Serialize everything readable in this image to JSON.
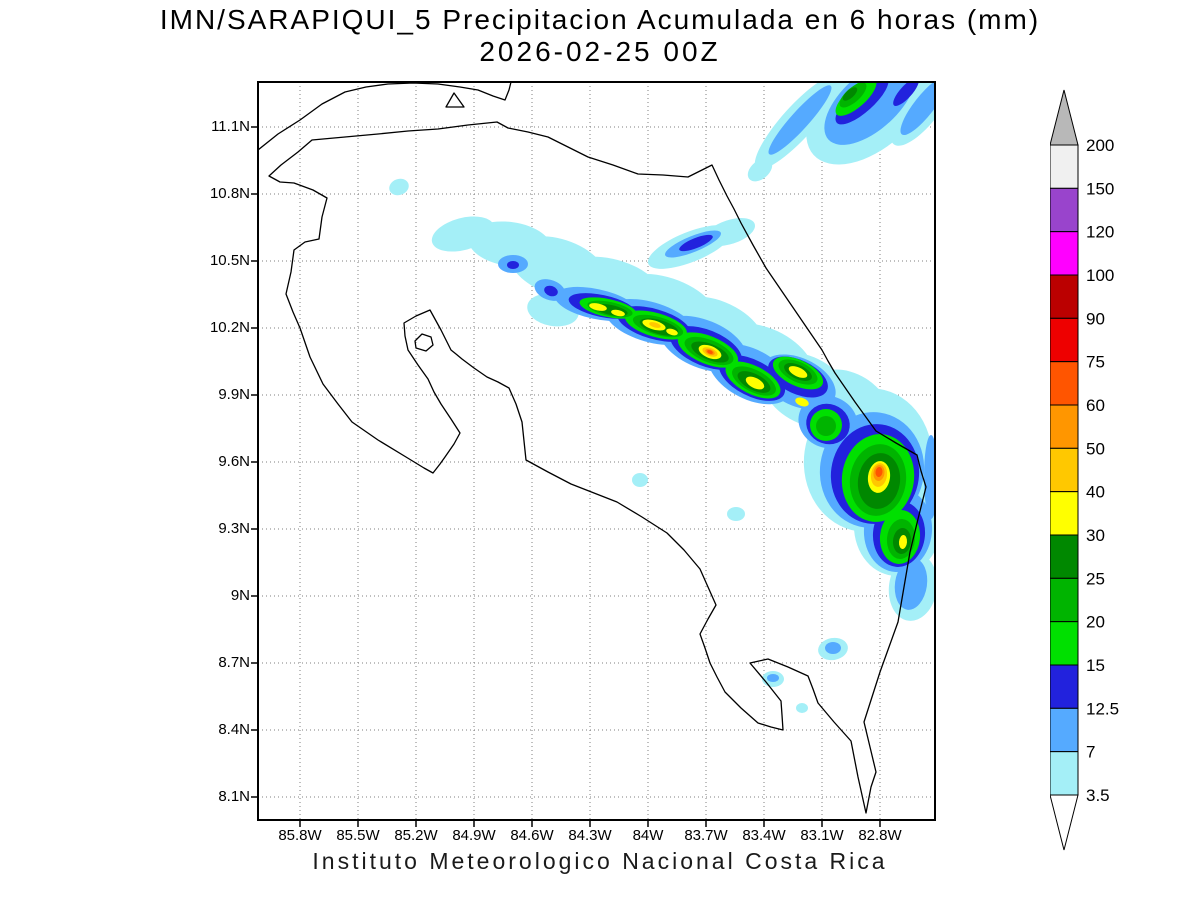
{
  "header": {
    "title_line1": "IMN/SARAPIQUI_5 Precipitacion Acumulada en 6 horas (mm)",
    "title_line2": "2026-02-25 00Z"
  },
  "footer": {
    "caption": "Instituto Meteorologico Nacional Costa Rica"
  },
  "map": {
    "y_axis_labels": [
      "11.1N",
      "10.8N",
      "10.5N",
      "10.2N",
      "9.9N",
      "9.6N",
      "9.3N",
      "9N",
      "8.7N",
      "8.4N",
      "8.1N"
    ],
    "x_axis_labels": [
      "85.8W",
      "85.5W",
      "85.2W",
      "84.9W",
      "84.6W",
      "84.3W",
      "84W",
      "83.7W",
      "83.4W",
      "83.1W",
      "82.8W"
    ]
  },
  "legend": {
    "units": "mm",
    "boundary_labels": [
      "200",
      "150",
      "120",
      "100",
      "90",
      "75",
      "60",
      "50",
      "40",
      "30",
      "25",
      "20",
      "15",
      "12.5",
      "7",
      "3.5"
    ],
    "palette": {
      "3.5": "#a4eff7",
      "7": "#55aaff",
      "12.5": "#2222dd",
      "15": "#00e000",
      "20": "#00b400",
      "25": "#008800",
      "30": "#ffff00",
      "40": "#ffc800",
      "50": "#ff9600",
      "60": "#ff5500",
      "75": "#ee0000",
      "90": "#bb0000",
      "100": "#ff00ff",
      "120": "#9944cc",
      "150": "#f0f0f0"
    },
    "above_max_color": "#b8b8b8",
    "below_min_color": "#ffffff"
  },
  "precip_blobs": [
    {
      "level": "3.5",
      "ellipses": [
        [
          141,
          105,
          10,
          8,
          -20
        ],
        [
          205,
          152,
          32,
          16,
          -15
        ],
        [
          252,
          162,
          42,
          22,
          8
        ],
        [
          300,
          185,
          50,
          28,
          18
        ],
        [
          352,
          207,
          55,
          30,
          15
        ],
        [
          405,
          228,
          58,
          33,
          18
        ],
        [
          455,
          252,
          55,
          34,
          22
        ],
        [
          505,
          280,
          55,
          34,
          25
        ],
        [
          548,
          308,
          48,
          33,
          30
        ],
        [
          432,
          165,
          45,
          15,
          -22
        ],
        [
          472,
          150,
          26,
          12,
          -18
        ],
        [
          502,
          88,
          14,
          9,
          -40
        ],
        [
          610,
          378,
          64,
          72,
          8
        ],
        [
          640,
          442,
          44,
          52,
          5
        ],
        [
          655,
          505,
          24,
          34,
          8
        ],
        [
          592,
          322,
          44,
          30,
          32
        ],
        [
          295,
          228,
          26,
          16,
          10
        ],
        [
          382,
          398,
          8,
          7,
          0
        ],
        [
          478,
          432,
          9,
          7,
          0
        ],
        [
          575,
          567,
          15,
          11,
          -10
        ],
        [
          515,
          597,
          11,
          8,
          0
        ],
        [
          544,
          626,
          6,
          5,
          0
        ],
        [
          540,
          40,
          62,
          16,
          -48
        ],
        [
          612,
          22,
          76,
          44,
          -42
        ],
        [
          664,
          26,
          46,
          17,
          -52
        ]
      ]
    },
    {
      "level": "7",
      "ellipses": [
        [
          255,
          182,
          15,
          9,
          0
        ],
        [
          292,
          208,
          16,
          10,
          20
        ],
        [
          338,
          222,
          42,
          15,
          12
        ],
        [
          392,
          240,
          46,
          20,
          16
        ],
        [
          445,
          262,
          46,
          24,
          22
        ],
        [
          492,
          292,
          45,
          25,
          27
        ],
        [
          540,
          300,
          40,
          24,
          25
        ],
        [
          570,
          340,
          30,
          26,
          20
        ],
        [
          614,
          388,
          52,
          58,
          8
        ],
        [
          640,
          448,
          34,
          42,
          5
        ],
        [
          653,
          502,
          16,
          26,
          8
        ],
        [
          435,
          162,
          30,
          8,
          -22
        ],
        [
          575,
          566,
          8,
          6,
          0
        ],
        [
          515,
          596,
          6,
          4,
          0
        ],
        [
          612,
          20,
          56,
          28,
          -42
        ],
        [
          542,
          38,
          46,
          9,
          -48
        ],
        [
          666,
          24,
          36,
          10,
          -52
        ],
        [
          673,
          395,
          7,
          42,
          0
        ]
      ]
    },
    {
      "level": "12.5",
      "ellipses": [
        [
          255,
          183,
          6,
          4,
          0
        ],
        [
          293,
          209,
          7,
          5,
          20
        ],
        [
          344,
          224,
          34,
          11,
          12
        ],
        [
          396,
          242,
          38,
          15,
          16
        ],
        [
          448,
          266,
          38,
          18,
          22
        ],
        [
          494,
          296,
          36,
          18,
          27
        ],
        [
          540,
          295,
          32,
          17,
          25
        ],
        [
          570,
          342,
          22,
          20,
          20
        ],
        [
          617,
          392,
          44,
          50,
          8
        ],
        [
          641,
          452,
          26,
          33,
          5
        ],
        [
          438,
          161,
          18,
          5,
          -22
        ],
        [
          604,
          18,
          34,
          12,
          -42
        ],
        [
          648,
          10,
          18,
          6,
          -48
        ]
      ]
    },
    {
      "level": "15",
      "ellipses": [
        [
          350,
          226,
          29,
          9,
          12
        ],
        [
          398,
          243,
          32,
          12,
          16
        ],
        [
          450,
          268,
          32,
          14,
          22
        ],
        [
          495,
          298,
          30,
          14,
          27
        ],
        [
          540,
          291,
          27,
          13,
          25
        ],
        [
          568,
          343,
          16,
          16,
          0
        ],
        [
          620,
          396,
          36,
          44,
          8
        ],
        [
          642,
          455,
          20,
          27,
          5
        ],
        [
          598,
          15,
          26,
          10,
          -42
        ]
      ]
    },
    {
      "level": "20",
      "ellipses": [
        [
          352,
          227,
          23,
          7,
          12
        ],
        [
          400,
          244,
          26,
          9,
          16
        ],
        [
          451,
          269,
          26,
          11,
          22
        ],
        [
          496,
          299,
          24,
          11,
          27
        ],
        [
          540,
          290,
          21,
          10,
          25
        ],
        [
          568,
          344,
          10,
          10,
          0
        ],
        [
          620,
          398,
          28,
          36,
          8
        ],
        [
          643,
          457,
          14,
          20,
          5
        ],
        [
          595,
          13,
          17,
          7,
          -42
        ]
      ]
    },
    {
      "level": "25",
      "ellipses": [
        [
          353,
          228,
          17,
          5,
          12
        ],
        [
          401,
          245,
          20,
          7,
          16
        ],
        [
          452,
          270,
          20,
          8,
          22
        ],
        [
          496,
          300,
          18,
          8,
          27
        ],
        [
          540,
          290,
          15,
          7,
          25
        ],
        [
          621,
          399,
          21,
          28,
          8
        ],
        [
          644,
          459,
          9,
          13,
          5
        ],
        [
          592,
          12,
          9,
          4,
          -42
        ]
      ]
    },
    {
      "level": "30",
      "ellipses": [
        [
          340,
          225,
          9,
          3.5,
          12
        ],
        [
          360,
          231,
          7,
          3,
          12
        ],
        [
          396,
          243,
          12,
          4.5,
          16
        ],
        [
          414,
          250,
          6,
          3,
          16
        ],
        [
          452,
          270,
          12,
          6,
          22
        ],
        [
          497,
          301,
          10,
          5,
          27
        ],
        [
          540,
          290,
          10,
          4.5,
          25
        ],
        [
          544,
          320,
          7,
          4,
          20
        ],
        [
          621,
          395,
          11,
          16,
          8
        ],
        [
          645,
          460,
          4,
          7,
          5
        ]
      ]
    },
    {
      "level": "40",
      "ellipses": [
        [
          397,
          243,
          6,
          2.5,
          16
        ],
        [
          452,
          270,
          8,
          4,
          22
        ],
        [
          621,
          393,
          8,
          12,
          8
        ]
      ]
    },
    {
      "level": "50",
      "ellipses": [
        [
          452,
          270,
          5,
          2.5,
          22
        ],
        [
          621,
          391,
          5.5,
          8,
          8
        ]
      ]
    },
    {
      "level": "60",
      "ellipses": [
        [
          452,
          270,
          3,
          1.8,
          22
        ],
        [
          621,
          390,
          3.5,
          5,
          8
        ]
      ]
    }
  ]
}
